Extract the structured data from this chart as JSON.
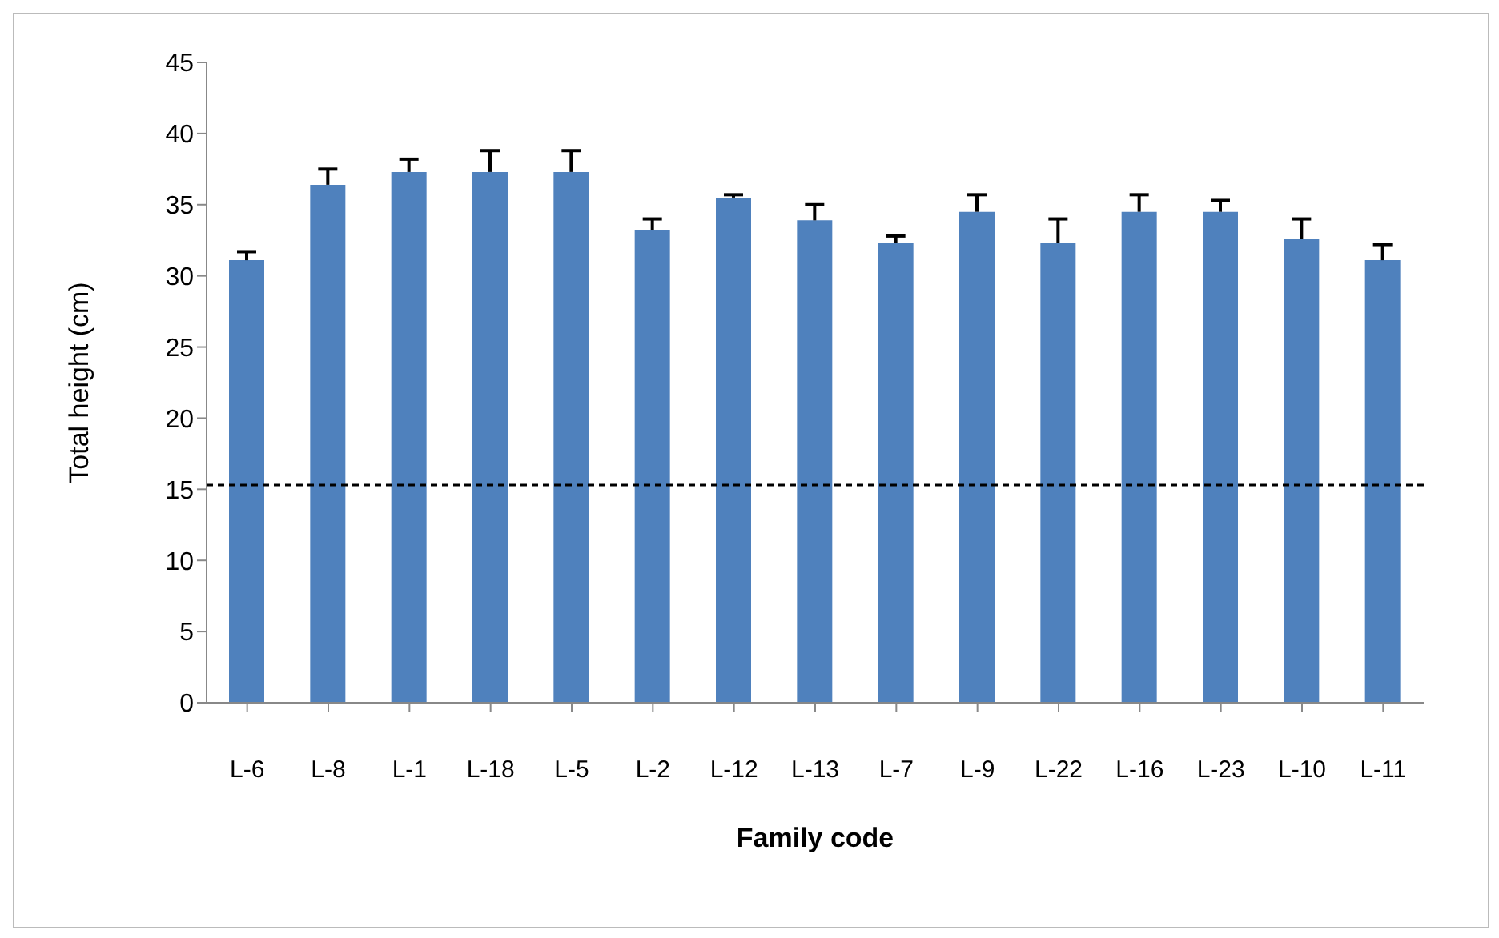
{
  "chart_data": {
    "type": "bar",
    "xlabel": "Family code",
    "ylabel": "Total height (cm)",
    "categories": [
      "L-6",
      "L-8",
      "L-1",
      "L-18",
      "L-5",
      "L-2",
      "L-12",
      "L-13",
      "L-7",
      "L-9",
      "L-22",
      "L-16",
      "L-23",
      "L-10",
      "L-11"
    ],
    "values": [
      31.1,
      36.4,
      37.3,
      37.3,
      37.3,
      33.2,
      35.5,
      33.9,
      32.3,
      34.5,
      32.3,
      34.5,
      34.5,
      32.6,
      31.1
    ],
    "errors": [
      [
        31.1,
        31.7
      ],
      [
        36.4,
        37.5
      ],
      [
        37.3,
        38.2
      ],
      [
        37.3,
        38.8
      ],
      [
        37.3,
        38.8
      ],
      [
        33.2,
        34.0
      ],
      [
        35.5,
        35.7
      ],
      [
        33.9,
        35.0
      ],
      [
        32.3,
        32.8
      ],
      [
        34.5,
        35.7
      ],
      [
        32.3,
        34.0
      ],
      [
        34.5,
        35.7
      ],
      [
        34.5,
        35.3
      ],
      [
        32.6,
        34.0
      ],
      [
        31.1,
        32.2
      ]
    ],
    "color": "#4f81bd",
    "ylim": [
      0,
      45
    ],
    "yticks": [
      0,
      5,
      10,
      15,
      20,
      25,
      30,
      35,
      40,
      45
    ],
    "ref_lines": [
      {
        "axis": "y",
        "value": 15.3,
        "color": "#000000",
        "line_style": "dashed"
      }
    ],
    "grid": false,
    "legend": false
  }
}
